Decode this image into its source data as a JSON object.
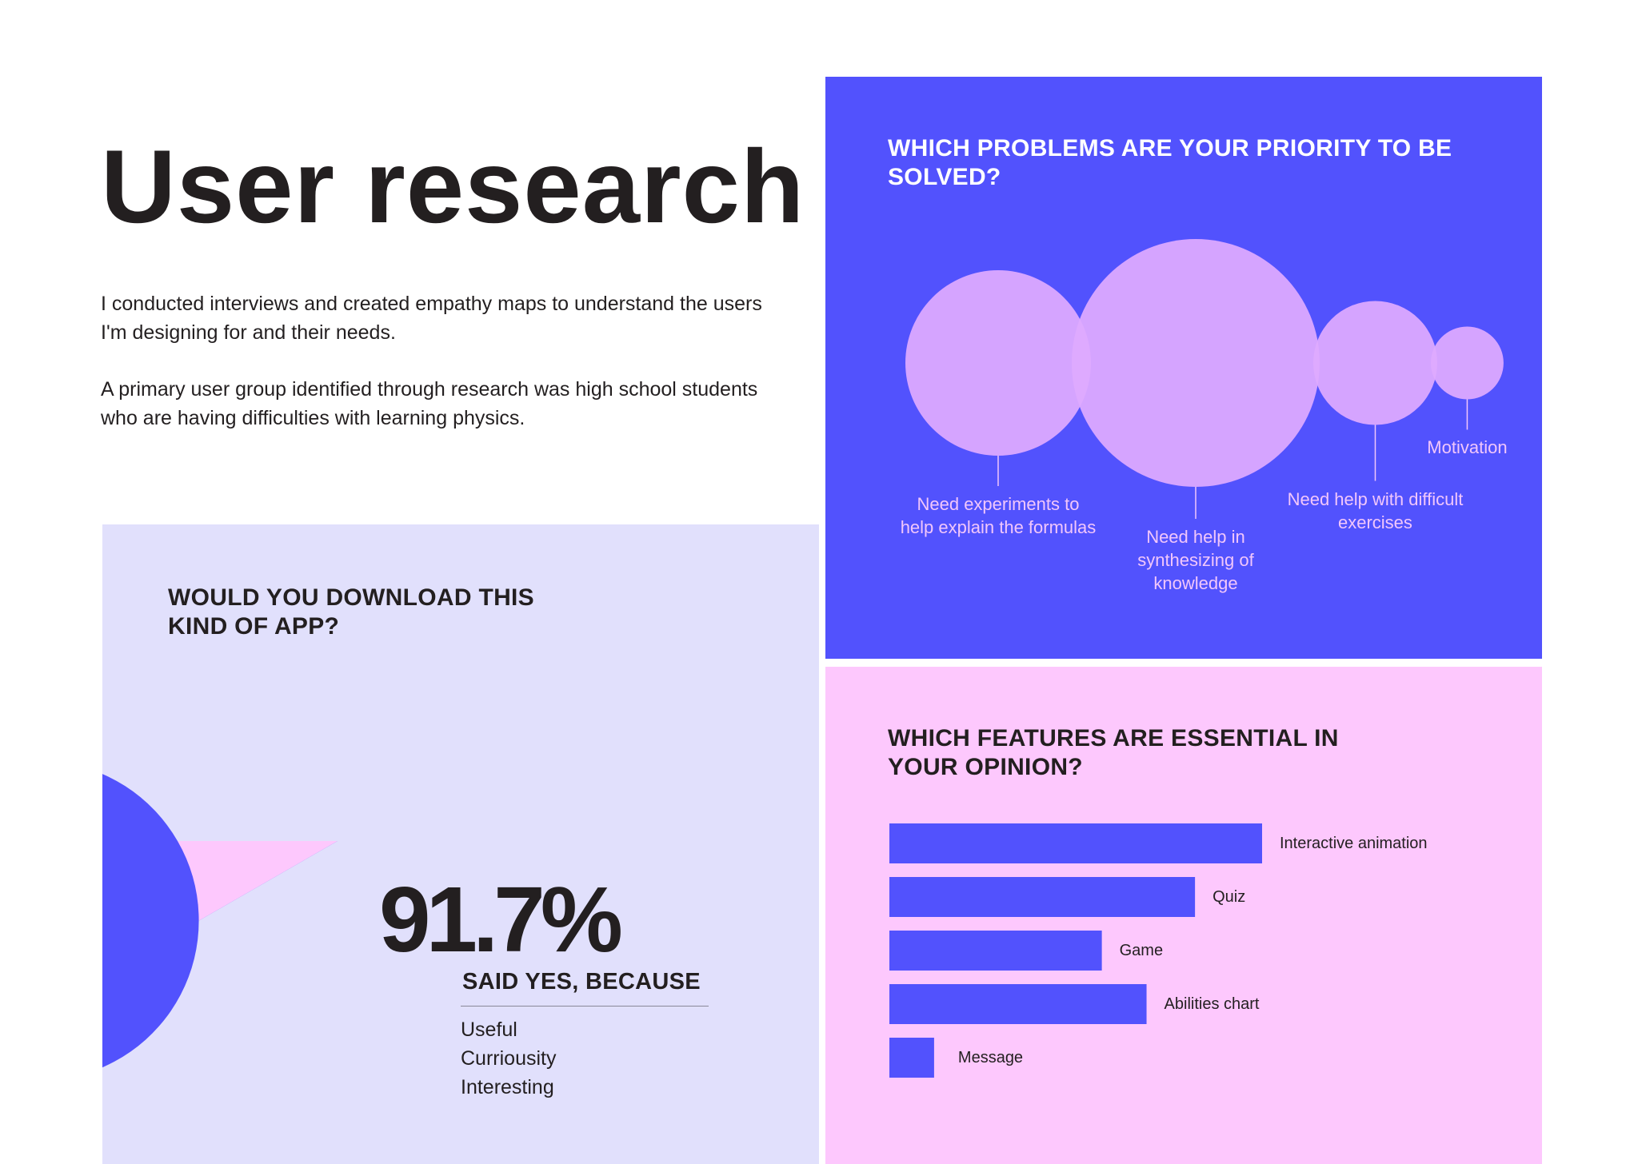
{
  "page": {
    "title": "User research",
    "intro": [
      "I conducted interviews and created empathy maps to understand the users I'm designing for and their needs.",
      "A primary user group identified through research was high school students who are having difficulties with learning physics."
    ]
  },
  "download_panel": {
    "title": "WOULD YOU DOWNLOAD THIS KIND OF APP?",
    "stat": "91.7%",
    "stat_caption": "SAID YES, BECAUSE",
    "reasons": [
      "Useful",
      "Curriousity",
      "Interesting"
    ]
  },
  "problems_panel": {
    "title": "WHICH PROBLEMS ARE YOUR PRIORITY TO BE SOLVED?"
  },
  "features_panel": {
    "title": "WHICH FEATURES ARE ESSENTIAL IN YOUR OPINION?"
  },
  "colors": {
    "blue": "#5252fd",
    "lavender": "#e1e0fc",
    "pink": "#fdc8fd",
    "bubble": "#dfaaff",
    "dark_text": "#231f20"
  },
  "chart_data": [
    {
      "type": "pie",
      "title": "WOULD YOU DOWNLOAD THIS KIND OF APP?",
      "slices": [
        {
          "value": 91.7,
          "color": "#5252fd"
        },
        {
          "value": 8.3,
          "color": "#fdc8fd"
        }
      ],
      "annotation": "91.7%",
      "legend": "none"
    },
    {
      "type": "bubble",
      "title": "WHICH PROBLEMS ARE YOUR PRIORITY TO BE SOLVED?",
      "categories": [
        "Need experiments to help explain the formulas",
        "Need help in synthesizing of knowledge",
        "Need help with difficult exercises",
        "Motivation"
      ],
      "values": [
        28,
        50,
        12.5,
        4.3
      ],
      "legend": "none"
    },
    {
      "type": "bar",
      "orientation": "horizontal",
      "title": "WHICH FEATURES ARE ESSENTIAL IN YOUR OPINION?",
      "categories": [
        "Interactive animation",
        "Quiz",
        "Game",
        "Abilities chart",
        "Message"
      ],
      "values": [
        100,
        82,
        57,
        69,
        12
      ],
      "grid": false,
      "legend": "none"
    }
  ]
}
